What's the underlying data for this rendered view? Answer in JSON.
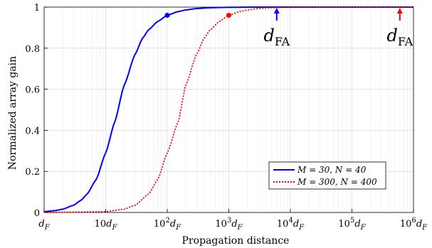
{
  "chart_data": {
    "type": "line",
    "xlabel": "Propagation distance",
    "ylabel": "Normalized array gain",
    "xscale": "log",
    "xunit": "d_F",
    "xlim": [
      1,
      1000000
    ],
    "ylim": [
      0,
      1
    ],
    "grid": true,
    "minor_grid": true,
    "legend_position": "lower-right",
    "xticks": [
      {
        "value": 1,
        "label": "d_F"
      },
      {
        "value": 10,
        "label": "10d_F"
      },
      {
        "value": 100,
        "label": "10^2d_F"
      },
      {
        "value": 1000,
        "label": "10^3d_F"
      },
      {
        "value": 10000,
        "label": "10^4d_F"
      },
      {
        "value": 100000,
        "label": "10^5d_F"
      },
      {
        "value": 1000000,
        "label": "10^6d_F"
      }
    ],
    "yticks": [
      0,
      0.2,
      0.4,
      0.6,
      0.8,
      1
    ],
    "series": [
      {
        "name": "M = 30, N = 40",
        "color": "#0000ff",
        "style": "solid",
        "x": [
          1,
          1.5,
          2,
          3,
          4,
          5,
          7,
          10,
          14,
          20,
          30,
          40,
          50,
          70,
          100,
          150,
          200,
          300,
          500,
          1000,
          3000,
          10000,
          100000,
          1000000
        ],
        "y": [
          0.004,
          0.009,
          0.016,
          0.035,
          0.06,
          0.09,
          0.16,
          0.29,
          0.44,
          0.62,
          0.77,
          0.85,
          0.89,
          0.93,
          0.96,
          0.978,
          0.986,
          0.993,
          0.997,
          0.999,
          1.0,
          1.0,
          1.0,
          1.0
        ],
        "marker": {
          "x": 100,
          "y": 0.96
        }
      },
      {
        "name": "M = 300, N = 400",
        "color": "#ff0000",
        "style": "dotted",
        "x": [
          1,
          10,
          20,
          30,
          50,
          70,
          100,
          150,
          200,
          300,
          400,
          500,
          700,
          1000,
          1500,
          2000,
          3000,
          5000,
          10000,
          100000,
          1000000
        ],
        "y": [
          0.0,
          0.004,
          0.016,
          0.035,
          0.09,
          0.16,
          0.29,
          0.44,
          0.62,
          0.77,
          0.85,
          0.89,
          0.93,
          0.96,
          0.978,
          0.986,
          0.993,
          0.997,
          0.999,
          1.0,
          1.0
        ],
        "marker": {
          "x": 1000,
          "y": 0.96
        }
      }
    ],
    "annotations": [
      {
        "label": "d_FA",
        "x": 6000,
        "color": "#0000ff"
      },
      {
        "label": "d_FA",
        "x": 600000,
        "color": "#ff0000"
      }
    ]
  }
}
